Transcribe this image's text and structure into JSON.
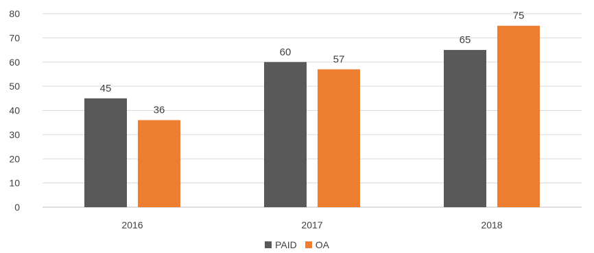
{
  "chart_data": {
    "type": "bar",
    "categories": [
      "2016",
      "2017",
      "2018"
    ],
    "series": [
      {
        "name": "PAID",
        "values": [
          45,
          60,
          65
        ],
        "color": "#595959"
      },
      {
        "name": "OA",
        "values": [
          36,
          57,
          75
        ],
        "color": "#ED7D31"
      }
    ],
    "ylim": [
      0,
      80
    ],
    "yticks": [
      "0",
      "10",
      "20",
      "30",
      "40",
      "50",
      "60",
      "70",
      "80"
    ],
    "grid": true,
    "legend_position": "bottom",
    "data_labels": true
  }
}
